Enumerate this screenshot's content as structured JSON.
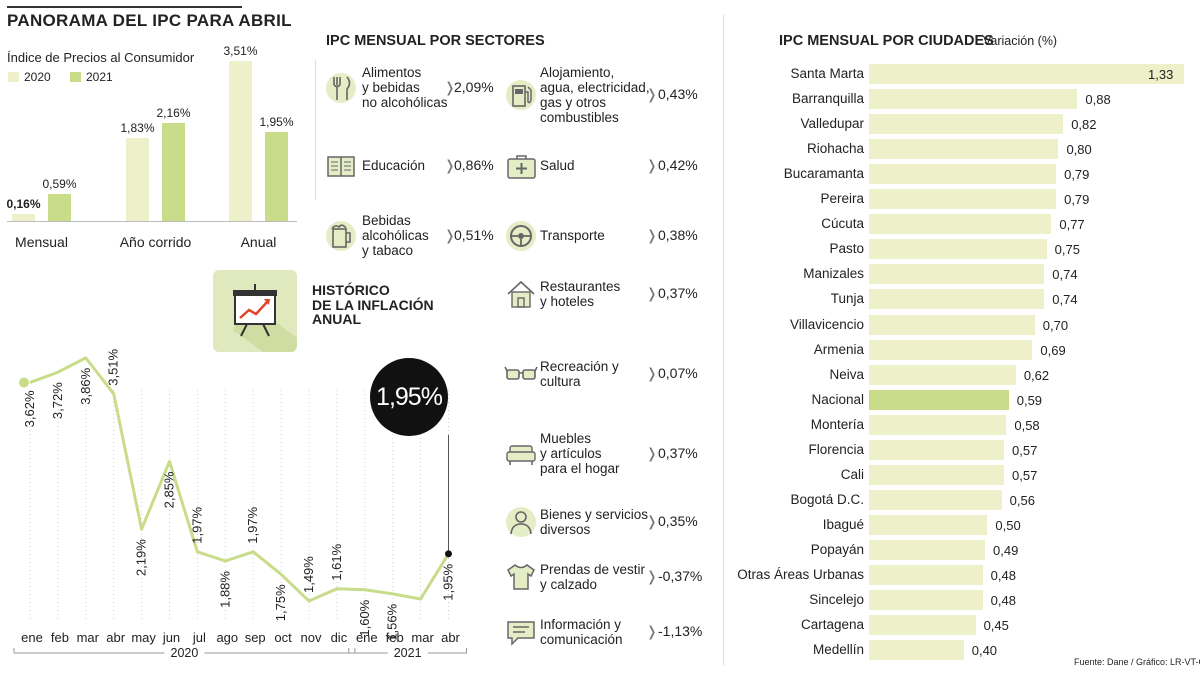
{
  "panorama": {
    "title": "PANORAMA DEL IPC PARA ABRIL",
    "subtitle": "Índice de Precios al Consumidor",
    "legend": [
      {
        "label": "2020",
        "color": "#eef0c9"
      },
      {
        "label": "2021",
        "color": "#c8dc8a"
      }
    ]
  },
  "sectors": {
    "title": "IPC MENSUAL POR SECTORES",
    "items": [
      {
        "label": "Alimentos\ny bebidas\nno alcohólicas",
        "value": "2,09%",
        "icon": "fork-knife-icon"
      },
      {
        "label": "Educación",
        "value": "0,86%",
        "icon": "book-icon"
      },
      {
        "label": "Bebidas\nalcohólicas\ny tabaco",
        "value": "0,51%",
        "icon": "beer-mug-icon"
      },
      {
        "label": "Alojamiento,\nagua, electricidad,\ngas y otros\ncombustibles",
        "value": "0,43%",
        "icon": "gas-pump-icon"
      },
      {
        "label": "Salud",
        "value": "0,42%",
        "icon": "medical-kit-icon"
      },
      {
        "label": "Transporte",
        "value": "0,38%",
        "icon": "steering-wheel-icon"
      },
      {
        "label": "Restaurantes\ny hoteles",
        "value": "0,37%",
        "icon": "house-icon"
      },
      {
        "label": "Recreación y\ncultura",
        "value": "0,07%",
        "icon": "glasses-icon"
      },
      {
        "label": "Muebles\ny artículos\npara el hogar",
        "value": "0,37%",
        "icon": "sofa-icon"
      },
      {
        "label": "Bienes y servicios\ndiversos",
        "value": "0,35%",
        "icon": "person-icon"
      },
      {
        "label": "Prendas de vestir\ny calzado",
        "value": "-0,37%",
        "icon": "shirt-icon"
      },
      {
        "label": "Información y\ncomunicación",
        "value": "-1,13%",
        "icon": "chat-icon"
      }
    ]
  },
  "historico": {
    "title": "HISTÓRICO\nDE LA INFLACIÓN\nANUAL",
    "highlight": "1,95%",
    "icon": "presentation-chart-icon"
  },
  "cities": {
    "title": "IPC MENSUAL POR CIUDADES",
    "unit": "Variación (%)",
    "highlight_color": "#c8dc8a",
    "bar_color": "#eef0c9"
  },
  "source": "Fuente: Dane / Gráfico: LR-VT-GR",
  "chart_data": [
    {
      "type": "bar",
      "title": "PANORAMA DEL IPC PARA ABRIL",
      "subtitle": "Índice de Precios al Consumidor",
      "categories": [
        "Mensual",
        "Año corrido",
        "Anual"
      ],
      "series": [
        {
          "name": "2020",
          "values": [
            0.16,
            1.83,
            3.51
          ],
          "labels": [
            "0,16%",
            "1,83%",
            "3,51%"
          ],
          "color": "#eef0c9"
        },
        {
          "name": "2021",
          "values": [
            0.59,
            2.16,
            1.95
          ],
          "labels": [
            "0,59%",
            "2,16%",
            "1,95%"
          ],
          "color": "#c8dc8a"
        }
      ],
      "ylim": [
        0,
        3.51
      ]
    },
    {
      "type": "line",
      "title": "HISTÓRICO DE LA INFLACIÓN ANUAL",
      "x": [
        "ene",
        "feb",
        "mar",
        "abr",
        "may",
        "jun",
        "jul",
        "ago",
        "sep",
        "oct",
        "nov",
        "dic",
        "ene",
        "feb",
        "mar",
        "abr"
      ],
      "year_groups": [
        {
          "label": "2020",
          "from": 0,
          "to": 11
        },
        {
          "label": "2021",
          "from": 12,
          "to": 15
        }
      ],
      "values": [
        3.62,
        3.72,
        3.86,
        3.51,
        2.19,
        2.85,
        1.97,
        1.88,
        1.97,
        1.75,
        1.49,
        1.61,
        1.6,
        1.56,
        1.51,
        1.95
      ],
      "labels": [
        "3,62%",
        "3,72%",
        "3,86%",
        "3,51%",
        "2,19%",
        "2,85%",
        "1,97%",
        "1,88%",
        "1,97%",
        "1,75%",
        "1,49%",
        "1,61%",
        "1,60%",
        "1,56%",
        "",
        "1,95%"
      ],
      "color": "#c8dc8a"
    },
    {
      "type": "bar",
      "title": "IPC MENSUAL POR CIUDADES",
      "ylabel": "Variación (%)",
      "orientation": "horizontal",
      "categories": [
        "Santa Marta",
        "Barranquilla",
        "Valledupar",
        "Riohacha",
        "Bucaramanta",
        "Pereira",
        "Cúcuta",
        "Pasto",
        "Manizales",
        "Tunja",
        "Villavicencio",
        "Armenia",
        "Neiva",
        "Nacional",
        "Montería",
        "Florencia",
        "Cali",
        "Bogotá D.C.",
        "Ibagué",
        "Popayán",
        "Otras Áreas Urbanas",
        "Sincelejo",
        "Cartagena",
        "Medellín"
      ],
      "values": [
        1.33,
        0.88,
        0.82,
        0.8,
        0.79,
        0.79,
        0.77,
        0.75,
        0.74,
        0.74,
        0.7,
        0.69,
        0.62,
        0.59,
        0.58,
        0.57,
        0.57,
        0.56,
        0.5,
        0.49,
        0.48,
        0.48,
        0.45,
        0.4
      ],
      "labels": [
        "1,33",
        "0,88",
        "0,82",
        "0,80",
        "0,79",
        "0,79",
        "0,77",
        "0,75",
        "0,74",
        "0,74",
        "0,70",
        "0,69",
        "0,62",
        "0,59",
        "0,58",
        "0,57",
        "0,57",
        "0,56",
        "0,50",
        "0,49",
        "0,48",
        "0,48",
        "0,45",
        "0,40"
      ],
      "highlight": "Nacional"
    }
  ]
}
